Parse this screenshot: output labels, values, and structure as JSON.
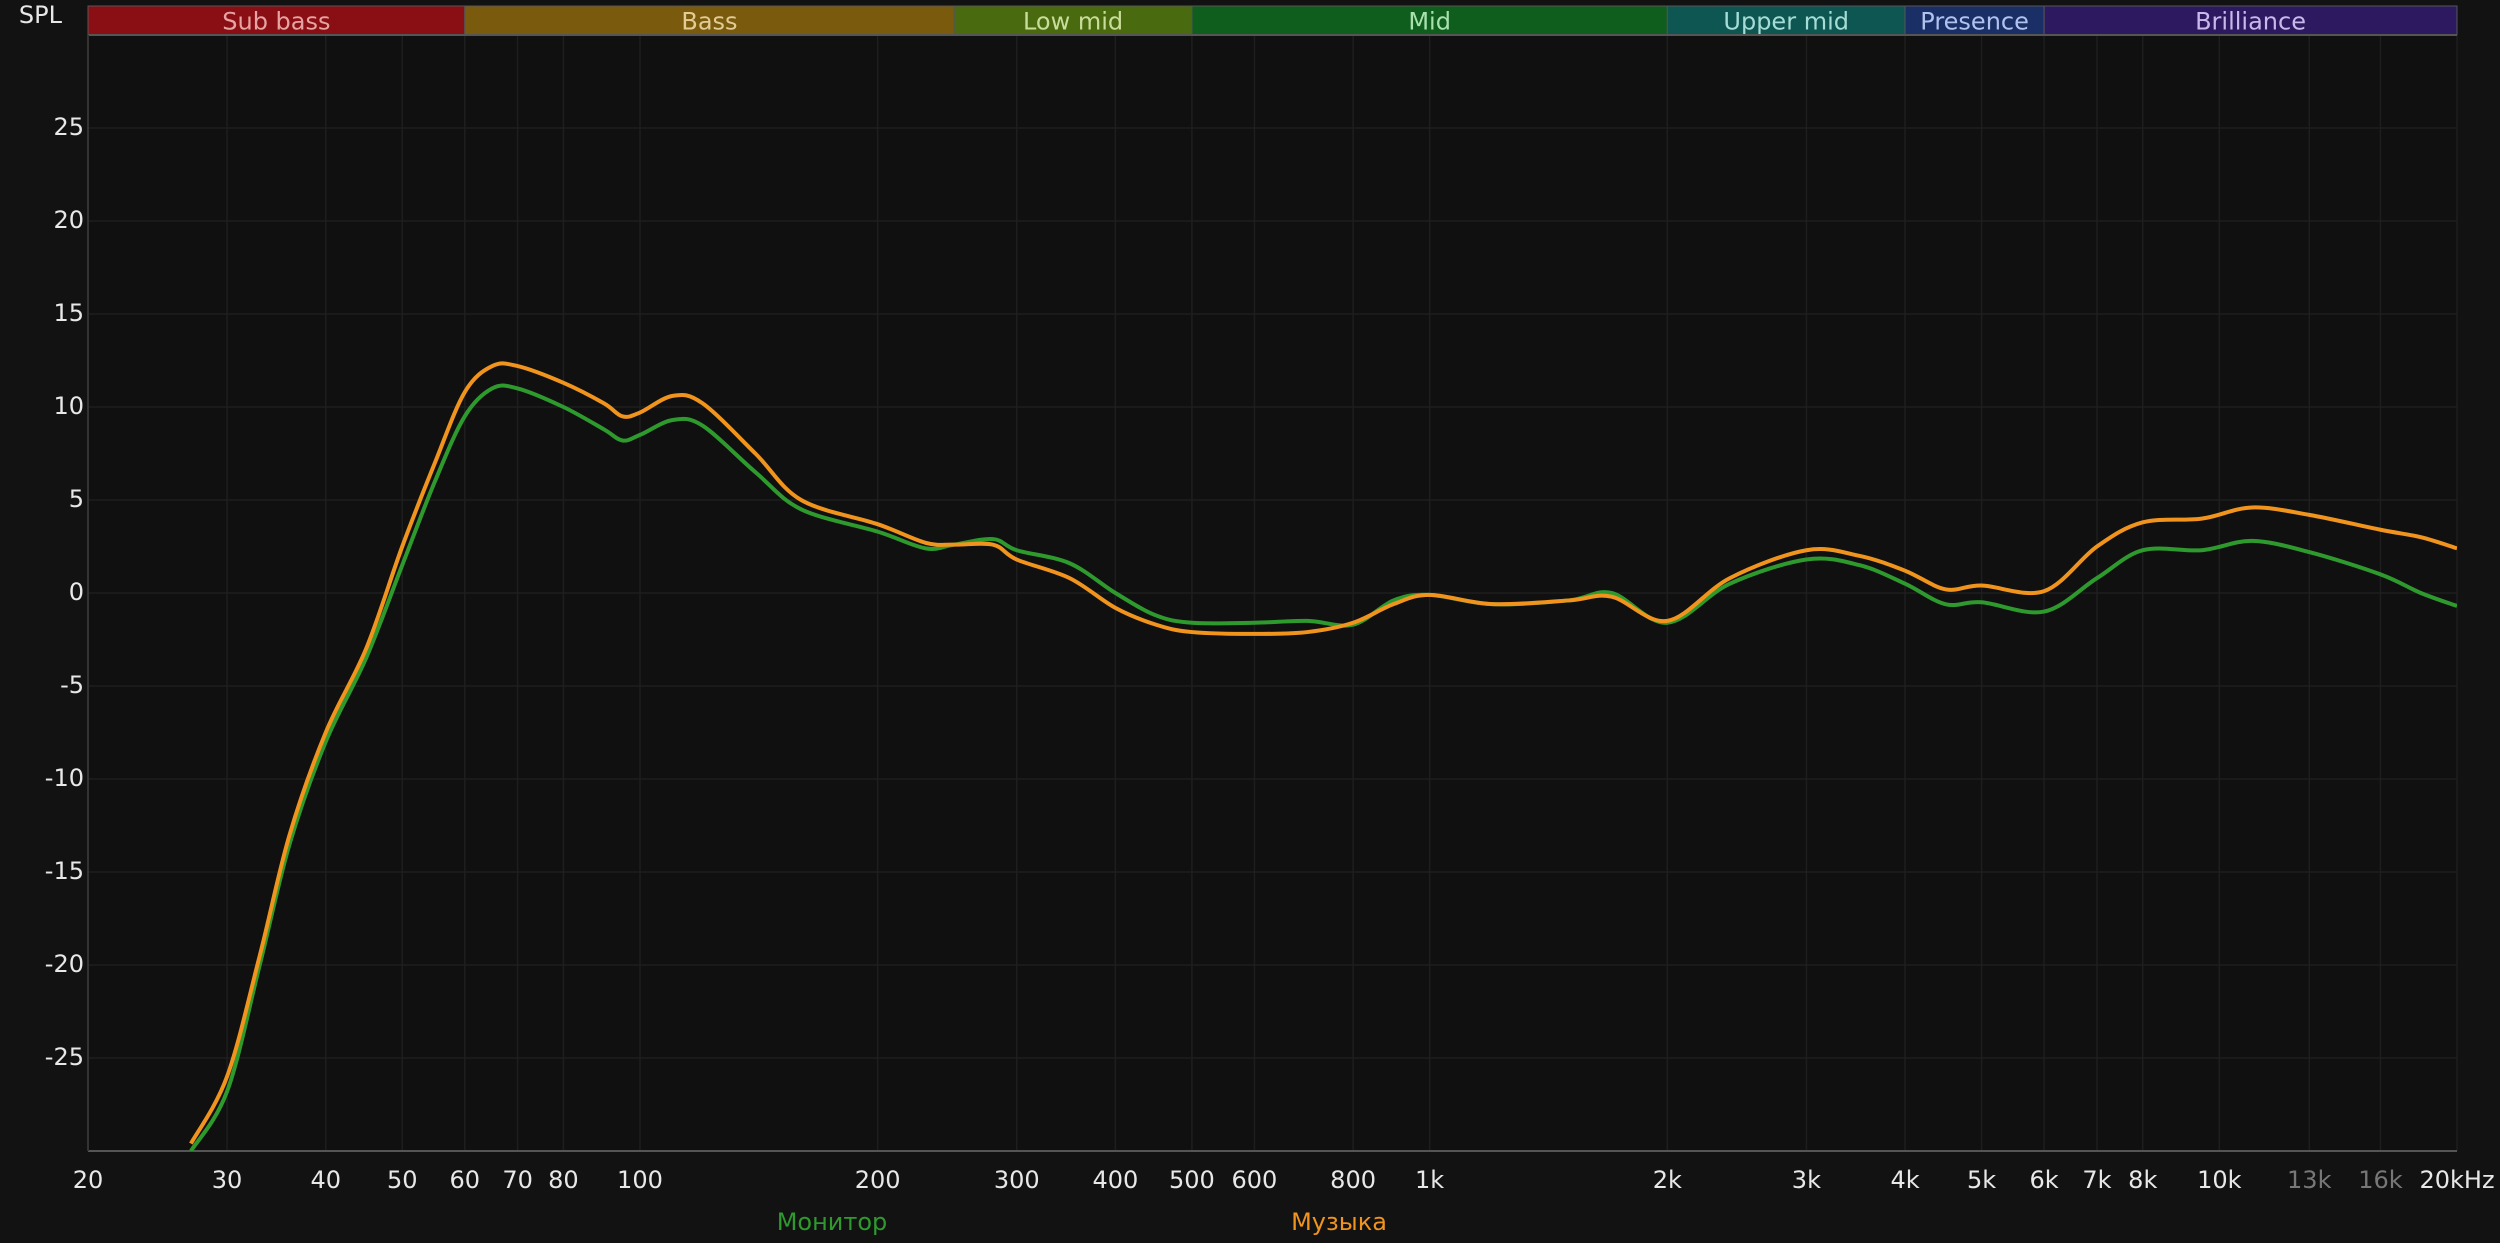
{
  "chart_data": {
    "type": "line",
    "title": "SPL",
    "xscale": "log",
    "grid": true,
    "background": "#101010",
    "grid_color": "#1e1e1e",
    "xlim": [
      20,
      20000
    ],
    "ylim": [
      -30,
      30
    ],
    "xticks": [
      20,
      30,
      40,
      50,
      60,
      70,
      80,
      100,
      200,
      300,
      400,
      500,
      600,
      800,
      {
        "value": 1000,
        "label": "1k"
      },
      {
        "value": 2000,
        "label": "2k"
      },
      {
        "value": 3000,
        "label": "3k"
      },
      {
        "value": 4000,
        "label": "4k"
      },
      {
        "value": 5000,
        "label": "5k"
      },
      {
        "value": 6000,
        "label": "6k"
      },
      {
        "value": 7000,
        "label": "7k"
      },
      {
        "value": 8000,
        "label": "8k"
      },
      {
        "value": 10000,
        "label": "10k"
      },
      {
        "value": 13000,
        "label": "13k",
        "color": "#777777"
      },
      {
        "value": 16000,
        "label": "16k",
        "color": "#777777"
      },
      {
        "value": 20000,
        "label": "20kHz"
      }
    ],
    "yticks": [
      -25,
      -20,
      -15,
      -10,
      -5,
      0,
      5,
      10,
      15,
      20,
      25
    ],
    "bands": [
      {
        "name": "Sub bass",
        "from": 20,
        "to": 60,
        "color": "#8a0f14",
        "text_color": "#e6a3a3"
      },
      {
        "name": "Bass",
        "from": 60,
        "to": 250,
        "color": "#7a5b0d",
        "text_color": "#e2cc96"
      },
      {
        "name": "Low mid",
        "from": 250,
        "to": 500,
        "color": "#4a6a10",
        "text_color": "#c9dd9a"
      },
      {
        "name": "Mid",
        "from": 500,
        "to": 2000,
        "color": "#0f5e1d",
        "text_color": "#a8e0ae"
      },
      {
        "name": "Upper mid",
        "from": 2000,
        "to": 4000,
        "color": "#0e5652",
        "text_color": "#a6dcd6"
      },
      {
        "name": "Presence",
        "from": 4000,
        "to": 6000,
        "color": "#1a2f66",
        "text_color": "#b2c2ee"
      },
      {
        "name": "Brilliance",
        "from": 6000,
        "to": 20000,
        "color": "#2d195f",
        "text_color": "#c8b8ec"
      }
    ],
    "x": [
      27,
      30,
      33,
      36,
      40,
      45,
      50,
      55,
      60,
      65,
      70,
      80,
      90,
      95,
      100,
      110,
      120,
      140,
      160,
      200,
      230,
      250,
      280,
      300,
      350,
      400,
      450,
      500,
      600,
      700,
      800,
      900,
      1000,
      1200,
      1500,
      1700,
      2000,
      2400,
      3000,
      3500,
      4000,
      4500,
      5000,
      6000,
      7000,
      8000,
      9500,
      11000,
      13000,
      16000,
      18000,
      20000
    ],
    "series": [
      {
        "name": "Монитор",
        "color": "#2e9a2e",
        "values": [
          -30,
          -26.8,
          -20,
          -13.5,
          -8,
          -3.5,
          1.5,
          6,
          9.5,
          11,
          11,
          10,
          8.8,
          8.2,
          8.5,
          9.3,
          9,
          6.5,
          4.5,
          3.3,
          2.4,
          2.6,
          2.9,
          2.3,
          1.6,
          0,
          -1.2,
          -1.6,
          -1.6,
          -1.5,
          -1.7,
          -0.4,
          -0.1,
          -0.6,
          -0.4,
          0,
          -1.6,
          0.5,
          1.8,
          1.5,
          0.5,
          -0.6,
          -0.5,
          -1,
          0.8,
          2.3,
          2.3,
          2.8,
          2.2,
          1,
          0,
          -0.7
        ]
      },
      {
        "name": "Музыка",
        "color": "#f0941e",
        "values": [
          -29.6,
          -26,
          -19.5,
          -13,
          -7.5,
          -3,
          2.5,
          7,
          10.8,
          12.2,
          12.2,
          11.3,
          10.2,
          9.5,
          9.7,
          10.6,
          10.2,
          7.5,
          5,
          3.7,
          2.7,
          2.6,
          2.6,
          1.8,
          0.8,
          -0.8,
          -1.7,
          -2.1,
          -2.2,
          -2.1,
          -1.6,
          -0.6,
          -0.1,
          -0.6,
          -0.4,
          -0.2,
          -1.5,
          0.8,
          2.3,
          2,
          1.2,
          0.2,
          0.4,
          0.1,
          2.5,
          3.8,
          4,
          4.6,
          4.2,
          3.4,
          3,
          2.4
        ]
      }
    ]
  }
}
